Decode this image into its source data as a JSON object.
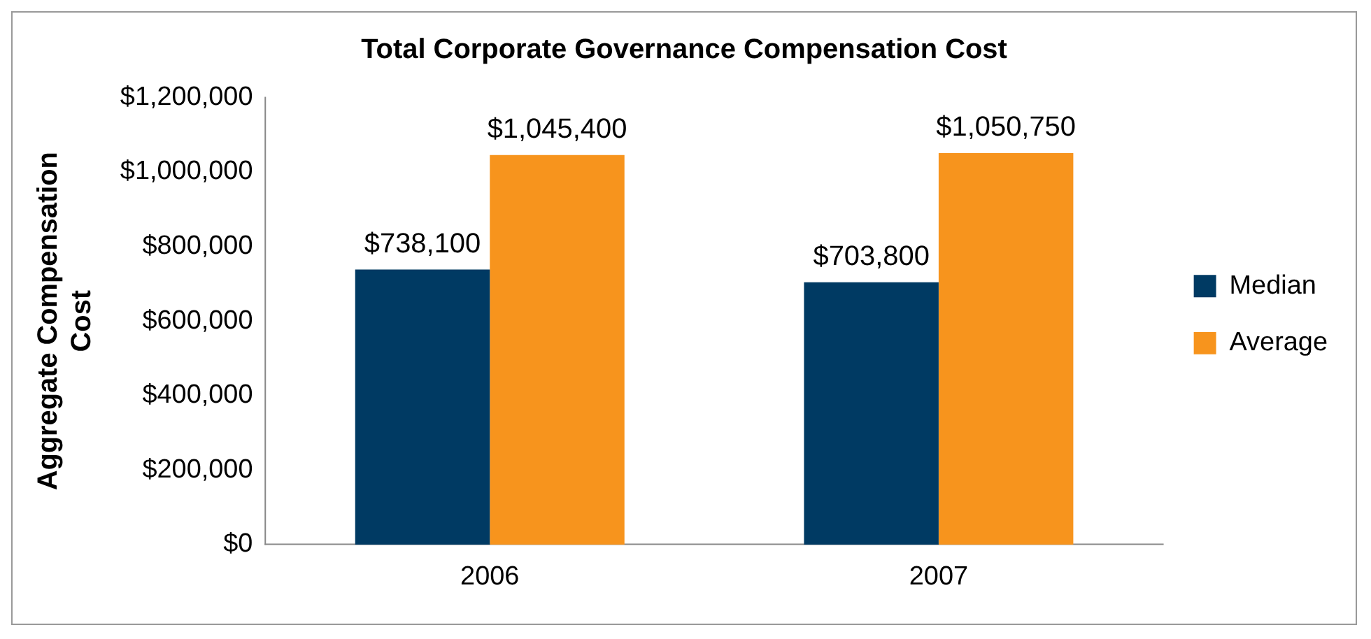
{
  "chart_data": {
    "type": "bar",
    "title": "Total Corporate Governance Compensation Cost",
    "ylabel": "Aggregate Compensation Cost",
    "categories": [
      "2006",
      "2007"
    ],
    "series": [
      {
        "name": "Median",
        "color": "#003a63",
        "values": [
          738100,
          703800
        ],
        "value_labels": [
          "$738,100",
          "$703,800"
        ]
      },
      {
        "name": "Average",
        "color": "#f7941d",
        "values": [
          1045400,
          1050750
        ],
        "value_labels": [
          "$1,045,400",
          "$1,050,750"
        ]
      }
    ],
    "ylim": [
      0,
      1200000
    ],
    "yticks": [
      {
        "value": 0,
        "label": "$0"
      },
      {
        "value": 200000,
        "label": "$200,000"
      },
      {
        "value": 400000,
        "label": "$400,000"
      },
      {
        "value": 600000,
        "label": "$600,000"
      },
      {
        "value": 800000,
        "label": "$800,000"
      },
      {
        "value": 1000000,
        "label": "$1,000,000"
      },
      {
        "value": 1200000,
        "label": "$1,200,000"
      }
    ],
    "grid": false,
    "legend": "right"
  }
}
